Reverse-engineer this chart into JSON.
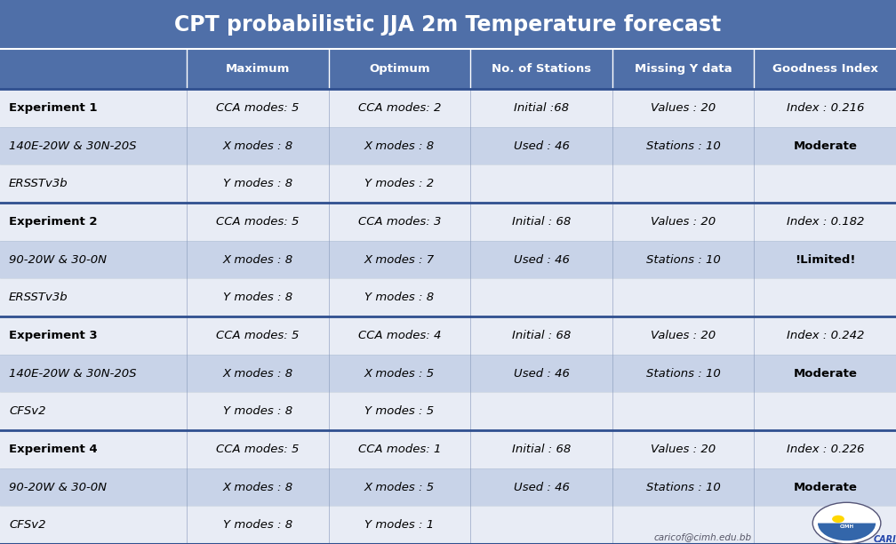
{
  "title": "CPT probabilistic JJA 2m Temperature forecast",
  "title_bg": "#4F6FA8",
  "title_color": "#FFFFFF",
  "header_bg": "#4F6FA8",
  "header_color": "#FFFFFF",
  "row_bg_white": "#E8ECF5",
  "row_bg_blue": "#C8D3E8",
  "separator_color": "#2F4F8F",
  "col_headers": [
    "Maximum",
    "Optimum",
    "No. of Stations",
    "Missing Y data",
    "Goodness Index"
  ],
  "rows": [
    {
      "label": "Experiment 1",
      "label_bold": true,
      "label_italic": false,
      "cols": [
        "CCA modes: 5",
        "CCA modes: 2",
        "Initial :68",
        "Values : 20",
        "Index : 0.216"
      ],
      "col_bold": [
        false,
        false,
        false,
        false,
        false
      ],
      "bg": "white",
      "separator_above": true
    },
    {
      "label": "140E-20W & 30N-20S",
      "label_bold": false,
      "label_italic": true,
      "cols": [
        "X modes : 8",
        "X modes : 8",
        "Used : 46",
        "Stations : 10",
        "Moderate"
      ],
      "col_bold": [
        false,
        false,
        false,
        false,
        true
      ],
      "bg": "blue",
      "separator_above": false
    },
    {
      "label": "ERSSTv3b",
      "label_bold": false,
      "label_italic": true,
      "cols": [
        "Y modes : 8",
        "Y modes : 2",
        "",
        "",
        ""
      ],
      "col_bold": [
        false,
        false,
        false,
        false,
        false
      ],
      "bg": "white",
      "separator_above": false
    },
    {
      "label": "Experiment 2",
      "label_bold": true,
      "label_italic": false,
      "cols": [
        "CCA modes: 5",
        "CCA modes: 3",
        "Initial : 68",
        "Values : 20",
        "Index : 0.182"
      ],
      "col_bold": [
        false,
        false,
        false,
        false,
        false
      ],
      "bg": "white",
      "separator_above": true
    },
    {
      "label": "90-20W & 30-0N",
      "label_bold": false,
      "label_italic": true,
      "cols": [
        "X modes : 8",
        "X modes : 7",
        "Used : 46",
        "Stations : 10",
        "!Limited!"
      ],
      "col_bold": [
        false,
        false,
        false,
        false,
        true
      ],
      "bg": "blue",
      "separator_above": false
    },
    {
      "label": "ERSSTv3b",
      "label_bold": false,
      "label_italic": true,
      "cols": [
        "Y modes : 8",
        "Y modes : 8",
        "",
        "",
        ""
      ],
      "col_bold": [
        false,
        false,
        false,
        false,
        false
      ],
      "bg": "white",
      "separator_above": false
    },
    {
      "label": "Experiment 3",
      "label_bold": true,
      "label_italic": false,
      "cols": [
        "CCA modes: 5",
        "CCA modes: 4",
        "Initial : 68",
        "Values : 20",
        "Index : 0.242"
      ],
      "col_bold": [
        false,
        false,
        false,
        false,
        false
      ],
      "bg": "white",
      "separator_above": true
    },
    {
      "label": "140E-20W & 30N-20S",
      "label_bold": false,
      "label_italic": true,
      "cols": [
        "X modes : 8",
        "X modes : 5",
        "Used : 46",
        "Stations : 10",
        "Moderate"
      ],
      "col_bold": [
        false,
        false,
        false,
        false,
        true
      ],
      "bg": "blue",
      "separator_above": false
    },
    {
      "label": "CFSv2",
      "label_bold": false,
      "label_italic": true,
      "cols": [
        "Y modes : 8",
        "Y modes : 5",
        "",
        "",
        ""
      ],
      "col_bold": [
        false,
        false,
        false,
        false,
        false
      ],
      "bg": "white",
      "separator_above": false
    },
    {
      "label": "Experiment 4",
      "label_bold": true,
      "label_italic": false,
      "cols": [
        "CCA modes: 5",
        "CCA modes: 1",
        "Initial : 68",
        "Values : 20",
        "Index : 0.226"
      ],
      "col_bold": [
        false,
        false,
        false,
        false,
        false
      ],
      "bg": "white",
      "separator_above": true
    },
    {
      "label": "90-20W & 30-0N",
      "label_bold": false,
      "label_italic": true,
      "cols": [
        "X modes : 8",
        "X modes : 5",
        "Used : 46",
        "Stations : 10",
        "Moderate"
      ],
      "col_bold": [
        false,
        false,
        false,
        false,
        true
      ],
      "bg": "blue",
      "separator_above": false
    },
    {
      "label": "CFSv2",
      "label_bold": false,
      "label_italic": true,
      "cols": [
        "Y modes : 8",
        "Y modes : 1",
        "",
        "",
        ""
      ],
      "col_bold": [
        false,
        false,
        false,
        false,
        false
      ],
      "bg": "white",
      "separator_above": false
    }
  ],
  "footer_text": "caricof@cimh.edu.bb",
  "figsize": [
    10.08,
    6.12
  ],
  "dpi": 100
}
